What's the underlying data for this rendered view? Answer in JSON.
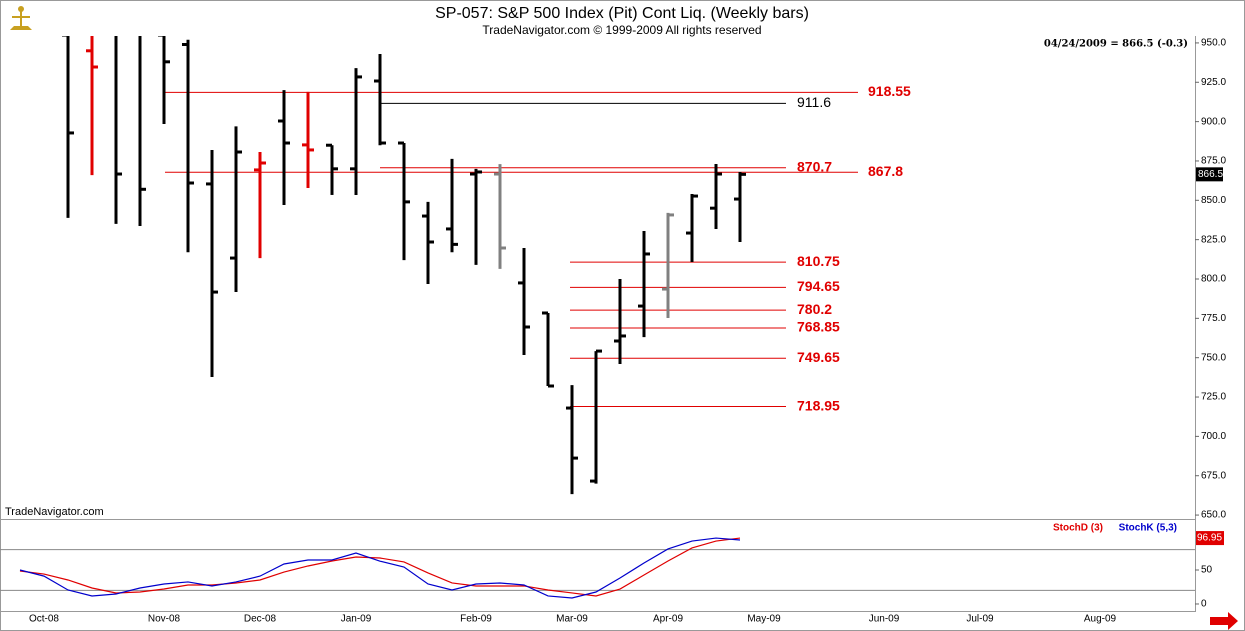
{
  "chart_data": [
    {
      "type": "ohlc",
      "title": "SP-057:  S&P 500 Index (Pit) Cont Liq.  (Weekly bars)",
      "subtitle": "TradeNavigator.com © 1999-2009 All rights reserved",
      "status": "04/24/2009 = 866.5 (-0.3)",
      "watermark": "TradeNavigator.com",
      "categories": [
        null,
        "Oct-08",
        null,
        null,
        null,
        null,
        "Nov-08",
        null,
        null,
        null,
        "Dec-08",
        null,
        null,
        null,
        "Jan-09",
        null,
        null,
        null,
        null,
        "Feb-09",
        null,
        null,
        null,
        "Mar-09",
        null,
        null,
        null,
        "Apr-09",
        null,
        null,
        null,
        "May-09",
        null,
        null,
        null,
        null,
        "Jun-09",
        null,
        null,
        null,
        "Jul-09",
        null,
        null,
        null,
        null,
        "Aug-09",
        null,
        null,
        null
      ],
      "open": [
        null,
        null,
        955,
        945,
        960,
        960,
        955,
        949,
        860.4,
        813.3,
        869.3,
        900.4,
        885.2,
        885,
        870,
        925.8,
        886.4,
        840,
        831.8,
        866.7,
        866.7,
        797.5,
        778.4,
        718,
        671.6,
        760.6,
        782.8,
        793.6,
        829.2,
        845,
        850.8,
        null,
        null,
        null,
        null,
        null,
        null,
        null,
        null,
        null,
        null,
        null,
        null,
        null,
        null,
        null,
        null,
        null,
        null
      ],
      "high": [
        null,
        null,
        960,
        958,
        970,
        960,
        960,
        952,
        882,
        897,
        880.7,
        920,
        918.9,
        885,
        934,
        943,
        886.4,
        849,
        876.3,
        870,
        873,
        819.7,
        778.4,
        732.6,
        754.2,
        800,
        830.5,
        842,
        854,
        873.1,
        868,
        null,
        null,
        null,
        null,
        null,
        null,
        null,
        null,
        null,
        null,
        null,
        null,
        null,
        null,
        null,
        null,
        null,
        null
      ],
      "low": [
        null,
        null,
        838.8,
        866,
        835,
        833.7,
        898.5,
        817,
        737.7,
        791.7,
        813.3,
        847,
        857.8,
        853.4,
        853.4,
        885,
        812,
        796.8,
        817,
        809,
        806.4,
        751.7,
        732,
        663.3,
        670,
        746,
        763.1,
        775.2,
        810.8,
        831.8,
        823.5,
        null,
        null,
        null,
        null,
        null,
        null,
        null,
        null,
        null,
        null,
        null,
        null,
        null,
        null,
        null,
        null,
        null,
        null
      ],
      "close": [
        null,
        null,
        892.8,
        934.7,
        866.7,
        857,
        938,
        861,
        791.7,
        880.7,
        873.7,
        886.4,
        882,
        870,
        928.4,
        886.4,
        849,
        823.5,
        822,
        868,
        819.7,
        769.5,
        732,
        686.2,
        754.2,
        763.8,
        815.9,
        840.7,
        852.7,
        866.7,
        866.5,
        null,
        null,
        null,
        null,
        null,
        null,
        null,
        null,
        null,
        null,
        null,
        null,
        null,
        null,
        null,
        null,
        null,
        null
      ],
      "colors": [
        null,
        null,
        "#000000",
        "#e00000",
        "#000000",
        "#000000",
        "#000000",
        "#000000",
        "#000000",
        "#000000",
        "#e00000",
        "#000000",
        "#e00000",
        "#000000",
        "#000000",
        "#000000",
        "#000000",
        "#000000",
        "#000000",
        "#000000",
        "#808080",
        "#000000",
        "#000000",
        "#000000",
        "#000000",
        "#000000",
        "#000000",
        "#808080",
        "#000000",
        "#000000",
        "#000000",
        null,
        null,
        null,
        null,
        null,
        null,
        null,
        null,
        null,
        null,
        null,
        null,
        null,
        null,
        null,
        null,
        null,
        null
      ],
      "levels": [
        {
          "value": 918.55,
          "color": "#e00000"
        },
        {
          "value": 911.6,
          "color": "#000000"
        },
        {
          "value": 870.7,
          "color": "#e00000"
        },
        {
          "value": 867.8,
          "color": "#e00000"
        },
        {
          "value": 810.75,
          "color": "#e00000"
        },
        {
          "value": 794.65,
          "color": "#e00000"
        },
        {
          "value": 780.2,
          "color": "#e00000"
        },
        {
          "value": 768.85,
          "color": "#e00000"
        },
        {
          "value": 749.65,
          "color": "#e00000"
        },
        {
          "value": 718.95,
          "color": "#e00000"
        }
      ],
      "ylim": [
        647.5,
        954.4
      ],
      "yticks": [
        {
          "value": 650,
          "label": "650.0"
        },
        {
          "value": 675,
          "label": "675.0"
        },
        {
          "value": 700,
          "label": "700.0"
        },
        {
          "value": 725,
          "label": "725.0"
        },
        {
          "value": 750,
          "label": "750.0"
        },
        {
          "value": 775,
          "label": "775.0"
        },
        {
          "value": 800,
          "label": "800.0"
        },
        {
          "value": 825,
          "label": "825.0"
        },
        {
          "value": 850,
          "label": "850.0"
        },
        {
          "value": 875,
          "label": "875.0"
        },
        {
          "value": 900,
          "label": "900.0"
        },
        {
          "value": 925,
          "label": "925.0"
        },
        {
          "value": 950,
          "label": "950.0"
        }
      ]
    },
    {
      "type": "line",
      "series": [
        {
          "name": "StochD (3)",
          "color": "#e00000",
          "values": [
            48.5,
            44,
            35.3,
            23.5,
            16.2,
            17.6,
            22,
            27.9,
            27.9,
            30.9,
            35.3,
            47,
            55.9,
            63.2,
            69.1,
            67.6,
            61.8,
            45.6,
            30.9,
            26.5,
            26.5,
            26.5,
            20.6,
            16.2,
            11.8,
            22,
            42.6,
            63.2,
            82.4,
            92.6,
            96.95,
            null,
            null,
            null,
            null,
            null,
            null,
            null,
            null,
            null,
            null,
            null,
            null,
            null,
            null,
            null,
            null,
            null,
            null
          ]
        },
        {
          "name": "StochK (5,3)",
          "color": "#0000cc",
          "values": [
            50,
            41,
            20.6,
            11.8,
            14.7,
            23.5,
            29.4,
            32.4,
            26.5,
            32.4,
            41,
            58.8,
            64.7,
            64.7,
            75,
            63,
            54.4,
            29.4,
            20.6,
            29.4,
            30.9,
            27.9,
            11.8,
            8.8,
            17.6,
            38.2,
            60.3,
            80.9,
            92.6,
            97,
            94.1,
            null,
            null,
            null,
            null,
            null,
            null,
            null,
            null,
            null,
            null,
            null,
            null,
            null,
            null,
            null,
            null,
            null,
            null
          ]
        }
      ],
      "hlines": [
        20,
        80
      ],
      "ylim": [
        -11.8,
        120.6
      ],
      "yticks": [
        0,
        50
      ]
    }
  ]
}
